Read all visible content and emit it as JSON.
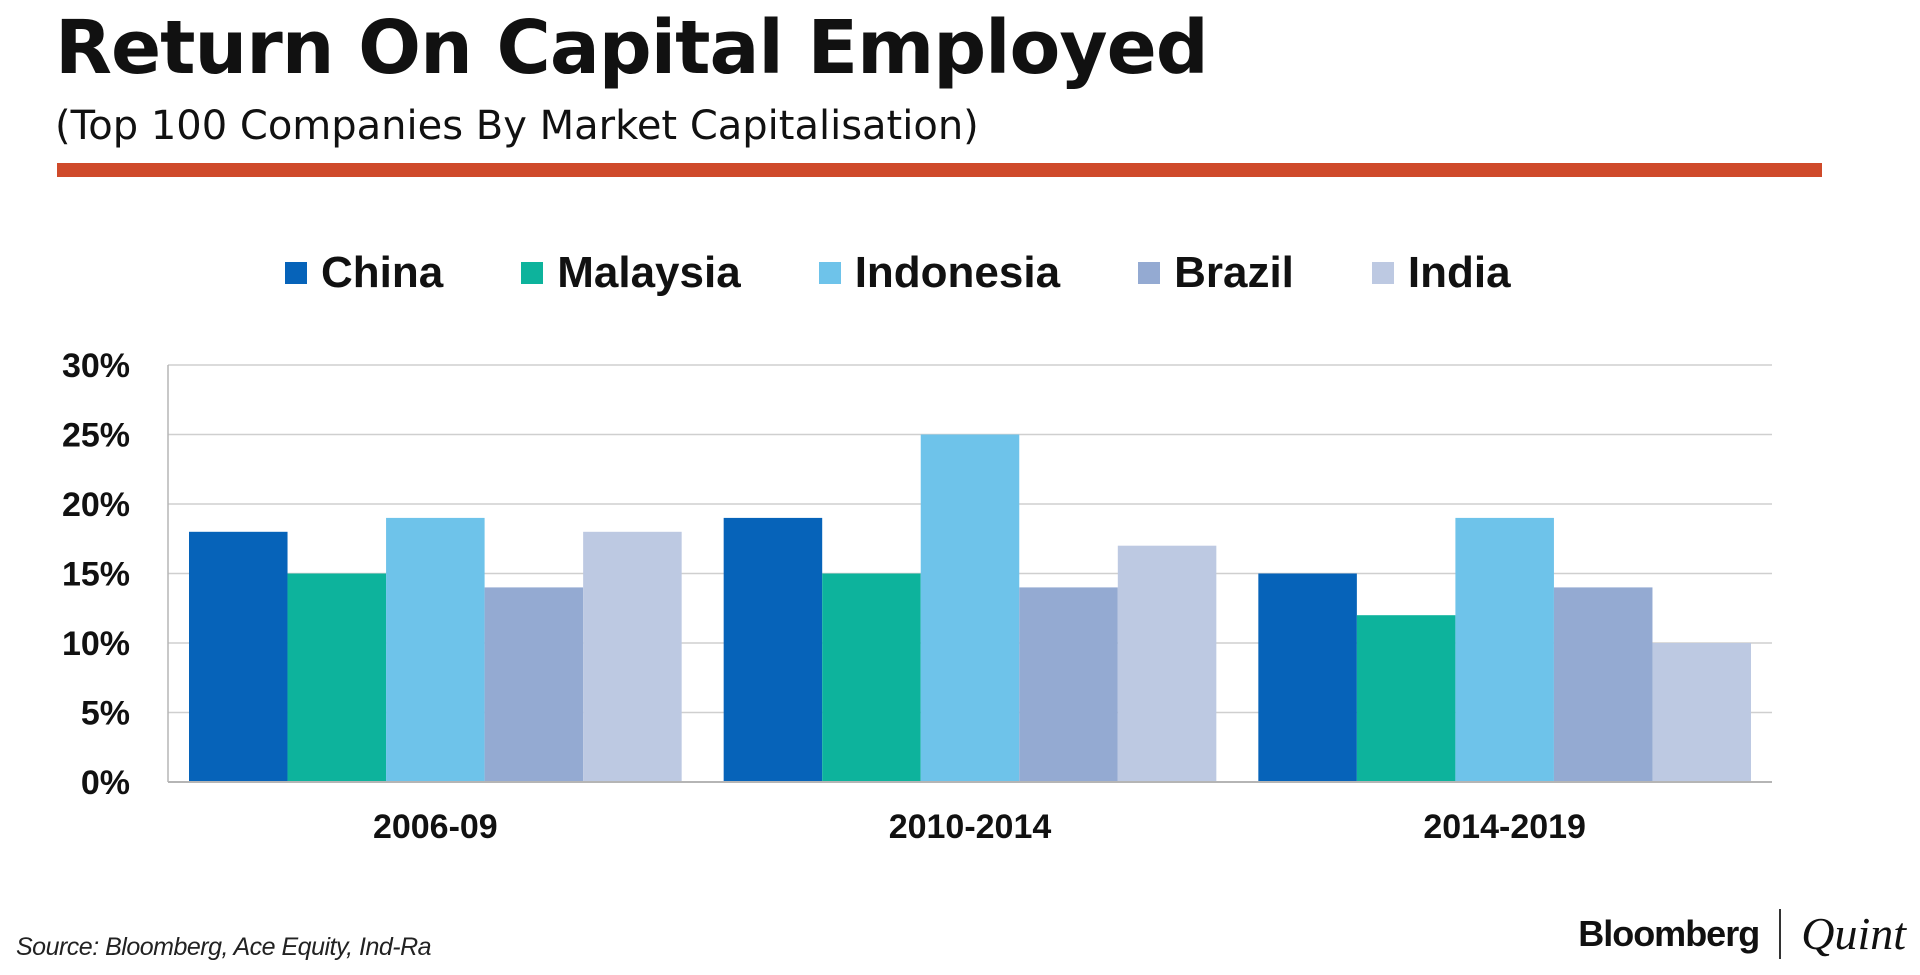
{
  "colors": {
    "accent_rule": "#cf4a2a",
    "grid": "#cfcfcf",
    "axis": "#b5b5b5"
  },
  "brand": {
    "left": "Bloomberg",
    "right": "Quint"
  },
  "source": "Source: Bloomberg, Ace Equity, Ind-Ra",
  "chart_data": {
    "type": "bar",
    "title": "Return On Capital Employed",
    "subtitle": "(Top 100 Companies By Market Capitalisation)",
    "xlabel": "",
    "ylabel": "",
    "ylim": [
      0,
      30
    ],
    "yticks": [
      0,
      5,
      10,
      15,
      20,
      25,
      30
    ],
    "ytick_labels": [
      "0%",
      "5%",
      "10%",
      "15%",
      "20%",
      "25%",
      "30%"
    ],
    "grid": true,
    "legend_position": "top",
    "categories": [
      "2006-09",
      "2010-2014",
      "2014-2019"
    ],
    "series": [
      {
        "name": "China",
        "color": "#0663b9",
        "values": [
          18,
          19,
          15
        ]
      },
      {
        "name": "Malaysia",
        "color": "#0db39c",
        "values": [
          15,
          15,
          12
        ]
      },
      {
        "name": "Indonesia",
        "color": "#6ec3ea",
        "values": [
          19,
          25,
          19
        ]
      },
      {
        "name": "Brazil",
        "color": "#94aad2",
        "values": [
          14,
          14,
          14
        ]
      },
      {
        "name": "India",
        "color": "#bdc9e2",
        "values": [
          18,
          17,
          10
        ]
      }
    ]
  }
}
